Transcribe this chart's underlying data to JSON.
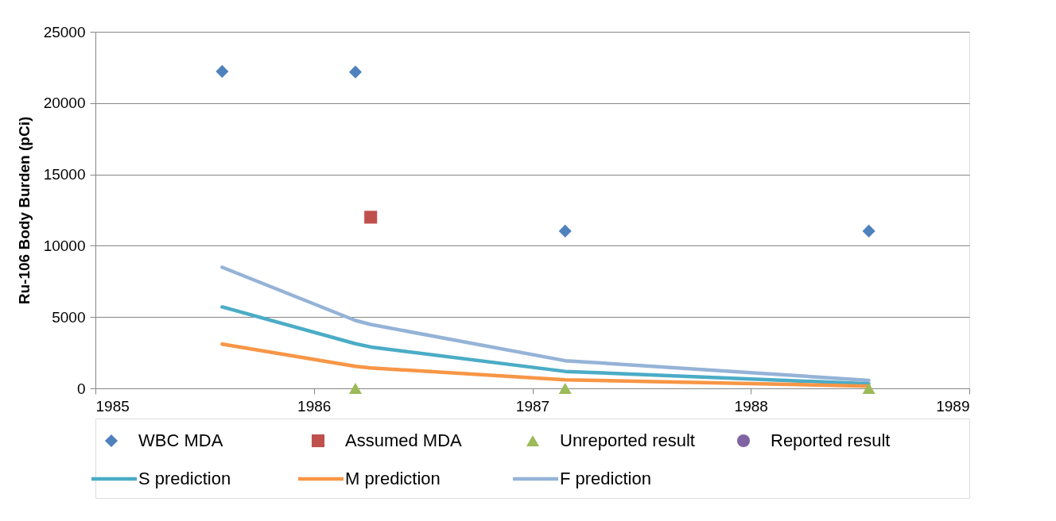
{
  "chart_data": {
    "type": "scatter",
    "ylabel": "Ru-106 Body Burden (pCi)",
    "xlim": [
      1985,
      1989
    ],
    "xticks": [
      1985,
      1986,
      1987,
      1988,
      1989
    ],
    "ylim": [
      0,
      25000
    ],
    "yticks": [
      0,
      5000,
      10000,
      15000,
      20000,
      25000
    ],
    "grid": "y",
    "legend": "bottom",
    "series": [
      {
        "name": "WBC MDA",
        "marker": "diamond",
        "color": "#4f81bd",
        "x": [
          1985.58,
          1986.19,
          1987.15,
          1988.54
        ],
        "values": [
          22220,
          22180,
          11030,
          11030
        ]
      },
      {
        "name": "Assumed MDA",
        "marker": "square",
        "color": "#c0504d",
        "x": [
          1986.26
        ],
        "values": [
          12000
        ]
      },
      {
        "name": "Unreported result",
        "marker": "triangle",
        "color": "#9bbb59",
        "x": [
          1986.19,
          1987.15,
          1988.54
        ],
        "values": [
          0,
          0,
          0
        ]
      },
      {
        "name": "Reported result",
        "marker": "circle",
        "color": "#8064a2"
      },
      {
        "name": "S prediction",
        "type": "line",
        "color": "#4bacc6",
        "x": [
          1985.58,
          1986.19,
          1986.26,
          1987.15,
          1988.54
        ],
        "values": [
          5710,
          3130,
          2900,
          1190,
          320
        ]
      },
      {
        "name": "M prediction",
        "type": "line",
        "color": "#f79646",
        "x": [
          1985.58,
          1986.19,
          1986.26,
          1987.15,
          1988.54
        ],
        "values": [
          3100,
          1550,
          1430,
          600,
          160
        ]
      },
      {
        "name": "F prediction",
        "type": "line",
        "color": "#95b3d7",
        "x": [
          1985.58,
          1986.19,
          1986.26,
          1987.15,
          1988.54
        ],
        "values": [
          8490,
          4760,
          4480,
          1940,
          560
        ]
      }
    ]
  }
}
